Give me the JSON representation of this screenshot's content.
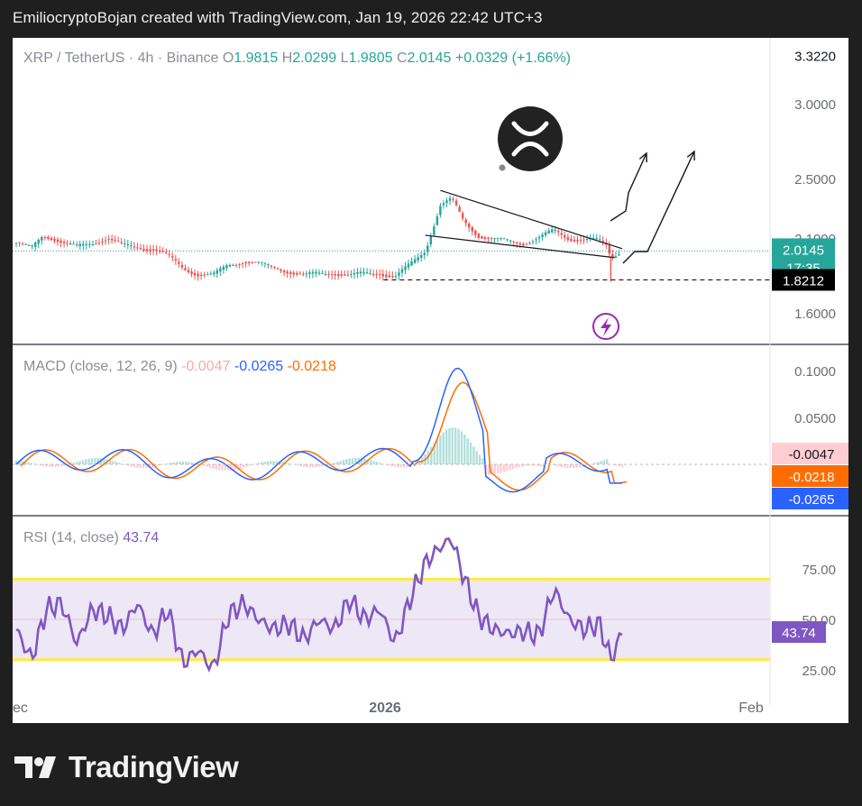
{
  "header": {
    "caption": "EmiliocryptoBojan created with TradingView.com, Jan 19, 2026 22:42 UTC+3"
  },
  "branding": {
    "name": "TradingView"
  },
  "colors": {
    "up": "#26a69a",
    "down": "#ef5350",
    "macd_line": "#2962ff",
    "signal_line": "#ff6d00",
    "rsi_line": "#7e57c2",
    "rsi_band_fill": "#ede7f6",
    "rsi_bands": "#ffeb3b",
    "price_tag": "#26a69a",
    "level_tag": "#000000"
  },
  "chart_data": [
    {
      "type": "candlestick",
      "title": "XRP / TetherUS · 4h · Binance",
      "ohlc": {
        "O": {
          "label": "O",
          "value": "1.9815"
        },
        "H": {
          "label": "H",
          "value": "2.0299"
        },
        "L": {
          "label": "L",
          "value": "1.9805"
        },
        "C": {
          "label": "C",
          "value": "2.0145"
        },
        "change": "+0.0329 (+1.66%)"
      },
      "y_ticks": [
        "3.3220",
        "3.0000",
        "2.5000",
        "2.1000",
        "1.6000"
      ],
      "y_tick_values": [
        3.322,
        3.0,
        2.5,
        2.1,
        1.6
      ],
      "last_price": {
        "value": "2.0145",
        "countdown": "17:35"
      },
      "support_level": {
        "value": "1.8212",
        "line_style": "dashed"
      },
      "close_path": [
        [
          0,
          2.07
        ],
        [
          0.02,
          2.03
        ],
        [
          0.035,
          2.12
        ],
        [
          0.05,
          2.1
        ],
        [
          0.065,
          2.06
        ],
        [
          0.08,
          2.04
        ],
        [
          0.1,
          2.07
        ],
        [
          0.12,
          2.1
        ],
        [
          0.14,
          2.05
        ],
        [
          0.16,
          2.04
        ],
        [
          0.18,
          2.03
        ],
        [
          0.2,
          1.98
        ],
        [
          0.22,
          1.9
        ],
        [
          0.24,
          1.86
        ],
        [
          0.26,
          1.85
        ],
        [
          0.28,
          1.92
        ],
        [
          0.3,
          1.95
        ],
        [
          0.32,
          1.93
        ],
        [
          0.34,
          1.9
        ],
        [
          0.36,
          1.88
        ],
        [
          0.38,
          1.85
        ],
        [
          0.4,
          1.86
        ],
        [
          0.42,
          1.87
        ],
        [
          0.44,
          1.85
        ],
        [
          0.46,
          1.86
        ],
        [
          0.48,
          1.87
        ],
        [
          0.5,
          1.84
        ],
        [
          0.52,
          1.92
        ],
        [
          0.54,
          2.02
        ],
        [
          0.56,
          2.32
        ],
        [
          0.575,
          2.36
        ],
        [
          0.59,
          2.22
        ],
        [
          0.61,
          2.12
        ],
        [
          0.63,
          2.09
        ],
        [
          0.65,
          2.08
        ],
        [
          0.67,
          2.07
        ],
        [
          0.69,
          2.1
        ],
        [
          0.71,
          2.15
        ],
        [
          0.73,
          2.1
        ],
        [
          0.75,
          2.09
        ],
        [
          0.77,
          2.08
        ],
        [
          0.78,
          2.05
        ],
        [
          0.785,
          1.97
        ],
        [
          0.795,
          2.01
        ],
        [
          0.8,
          2.01
        ]
      ],
      "annotations": {
        "falling_wedge": {
          "upper_start": 2.42,
          "upper_end": 2.03,
          "lower_start": 2.12,
          "lower_end": 1.97
        },
        "arrow_1_label": "",
        "arrow_2_label": ""
      }
    },
    {
      "type": "line",
      "title": "MACD (close, 12, 26, 9)",
      "values": {
        "histogram": "-0.0047",
        "macd": "-0.0265",
        "signal": "-0.0218"
      },
      "y_ticks": [
        "0.1000",
        "0.0500"
      ],
      "tags": [
        {
          "value": "-0.0047",
          "kind": "histogram"
        },
        {
          "value": "-0.0218",
          "kind": "signal"
        },
        {
          "value": "-0.0265",
          "kind": "macd"
        }
      ]
    },
    {
      "type": "line",
      "title": "RSI (14, close)",
      "value": "43.74",
      "y_ticks": [
        "75.00",
        "50.00",
        "25.00"
      ],
      "y_tick_values": [
        75,
        50,
        25
      ],
      "bands": {
        "upper": 70,
        "middle": 50,
        "lower": 30
      },
      "rsi_path": [
        [
          0,
          45
        ],
        [
          0.02,
          30
        ],
        [
          0.04,
          55
        ],
        [
          0.06,
          58
        ],
        [
          0.08,
          38
        ],
        [
          0.1,
          55
        ],
        [
          0.12,
          52
        ],
        [
          0.14,
          45
        ],
        [
          0.16,
          58
        ],
        [
          0.18,
          42
        ],
        [
          0.2,
          55
        ],
        [
          0.22,
          28
        ],
        [
          0.24,
          35
        ],
        [
          0.26,
          25
        ],
        [
          0.28,
          52
        ],
        [
          0.3,
          58
        ],
        [
          0.32,
          50
        ],
        [
          0.34,
          45
        ],
        [
          0.36,
          48
        ],
        [
          0.38,
          40
        ],
        [
          0.4,
          50
        ],
        [
          0.42,
          45
        ],
        [
          0.44,
          60
        ],
        [
          0.46,
          50
        ],
        [
          0.48,
          55
        ],
        [
          0.5,
          38
        ],
        [
          0.52,
          60
        ],
        [
          0.54,
          78
        ],
        [
          0.56,
          86
        ],
        [
          0.575,
          90
        ],
        [
          0.59,
          72
        ],
        [
          0.61,
          52
        ],
        [
          0.63,
          45
        ],
        [
          0.65,
          43
        ],
        [
          0.67,
          44
        ],
        [
          0.69,
          42
        ],
        [
          0.71,
          65
        ],
        [
          0.73,
          50
        ],
        [
          0.75,
          45
        ],
        [
          0.77,
          48
        ],
        [
          0.785,
          30
        ],
        [
          0.8,
          43.74
        ]
      ]
    }
  ],
  "x_axis": {
    "labels": [
      "ec",
      "2026",
      "Feb"
    ]
  }
}
